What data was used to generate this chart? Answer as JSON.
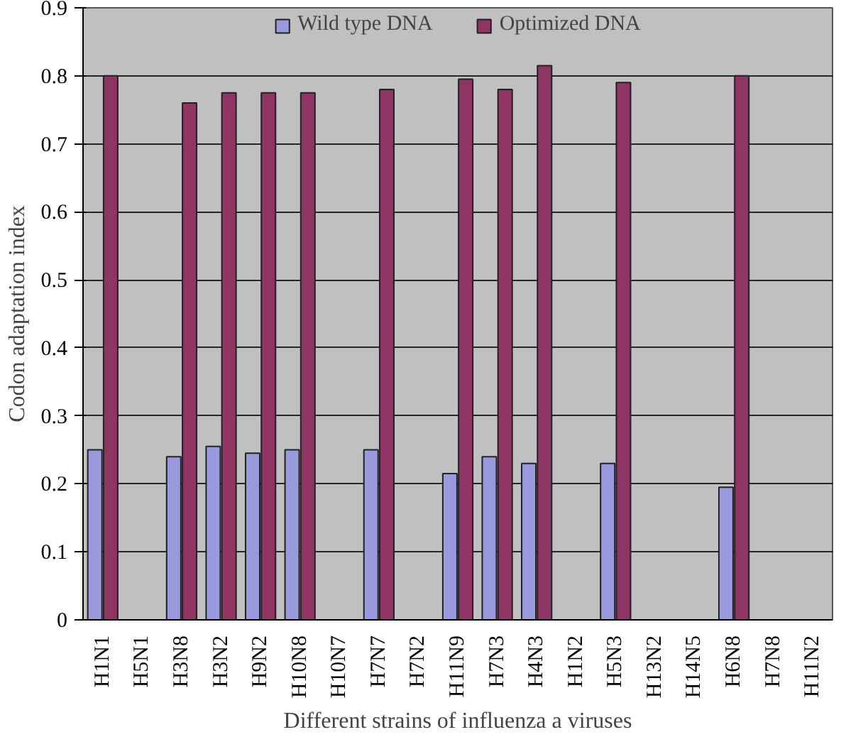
{
  "chart_data": {
    "type": "bar",
    "xlabel": "Different strains of influenza a viruses",
    "ylabel": "Codon adaptation index",
    "categories": [
      "H1N1",
      "H5N1",
      "H3N8",
      "H3N2",
      "H9N2",
      "H10N8",
      "H10N7",
      "H7N7",
      "H7N2",
      "H11N9",
      "H7N3",
      "H4N3",
      "H1N2",
      "H5N3",
      "H13N2",
      "H14N5",
      "H6N8",
      "H7N8",
      "H11N2"
    ],
    "series": [
      {
        "name": "Wild type DNA",
        "color": "#9999dd",
        "values": [
          0.25,
          0,
          0.24,
          0.255,
          0.245,
          0.25,
          0,
          0.25,
          0,
          0.215,
          0.24,
          0.23,
          0,
          0.23,
          0,
          0,
          0.195,
          0,
          0
        ]
      },
      {
        "name": "Optimized DNA",
        "color": "#8e3563",
        "values": [
          0.8,
          0,
          0.76,
          0.775,
          0.775,
          0.775,
          0,
          0.78,
          0,
          0.795,
          0.78,
          0.815,
          0,
          0.79,
          0,
          0,
          0.8,
          0,
          0
        ]
      }
    ],
    "ylim": [
      0,
      0.9
    ],
    "yticks": [
      {
        "value": 0,
        "label": "0"
      },
      0.1,
      0.2,
      0.3,
      0.4,
      0.5,
      0.6,
      0.7,
      0.8,
      0.9
    ],
    "grid": "y",
    "legend": "top"
  }
}
